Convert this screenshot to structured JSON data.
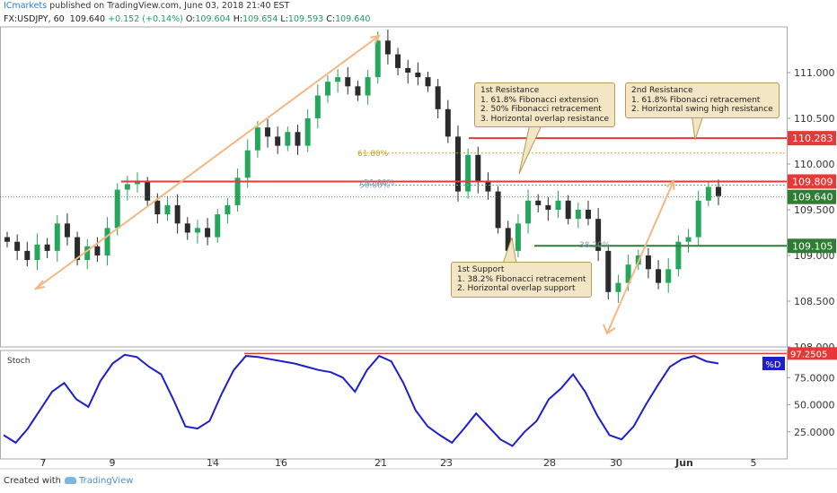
{
  "header": {
    "publisher": "ICmarkets",
    "published_text": "published on TradingView.com, June 03, 2018 21:40 EST",
    "symbol": "FX:USDJPY, 60",
    "last": "109.640",
    "change": "+0.152 (+0.14%)",
    "o_label": "O:",
    "o_value": "109.604",
    "h_label": "H:",
    "h_value": "109.654",
    "l_label": "L:",
    "l_value": "109.593",
    "c_label": "C:",
    "c_value": "109.640"
  },
  "footer": {
    "created_with": "Created with",
    "brand": "TradingView"
  },
  "annotations": {
    "resistance1": {
      "title": "1st Resistance",
      "lines": [
        "1. 61.8% Fibonacci extension",
        "2. 50% Fibonacci retracement",
        "3. Horizontal overlap resistance"
      ]
    },
    "resistance2": {
      "title": "2nd Resistance",
      "lines": [
        "1. 61.8% Fibonacci retracement",
        "2. Horizontal swing high resistance"
      ]
    },
    "support1": {
      "title": "1st Support",
      "lines": [
        "1. 38.2% Fibonacci retracement",
        "2. Horizontal overlap support"
      ]
    }
  },
  "chart_data": [
    {
      "type": "line",
      "style": "candlestick",
      "symbol": "USDJPY",
      "ylim": [
        108.0,
        111.5
      ],
      "y_ticks": [
        "111.000",
        "110.500",
        "110.000",
        "109.500",
        "109.000",
        "108.500",
        "108.000"
      ],
      "x_ticks": [
        "7",
        "9",
        "14",
        "16",
        "21",
        "23",
        "28",
        "30",
        "Jun",
        "5"
      ],
      "series": [
        {
          "values": [
            109.15,
            109.05,
            108.95,
            109.12,
            109.05,
            109.35,
            109.2,
            108.95,
            109.1,
            109.0,
            109.3,
            109.72,
            109.78,
            109.8,
            109.6,
            109.45,
            109.55,
            109.35,
            109.25,
            109.3,
            109.2,
            109.45,
            109.55,
            109.85,
            110.15,
            110.4,
            110.3,
            110.2,
            110.35,
            110.2,
            110.5,
            110.75,
            110.9,
            110.95,
            110.85,
            110.75,
            110.95,
            111.35,
            111.2,
            111.05,
            111.0,
            110.95,
            110.85,
            110.6,
            110.3,
            109.7,
            110.1,
            109.8,
            109.7,
            109.3,
            109.05,
            109.35,
            109.6,
            109.55,
            109.5,
            109.6,
            109.4,
            109.5,
            109.4,
            109.05,
            108.6,
            108.7,
            108.9,
            109.0,
            108.85,
            108.7,
            108.85,
            109.15,
            109.2,
            109.6,
            109.75,
            109.65
          ]
        }
      ],
      "levels": [
        {
          "label": "110.283",
          "value": 110.283,
          "color": "#e53935"
        },
        {
          "label": "109.809",
          "value": 109.809,
          "color": "#e53935"
        },
        {
          "label": "109.105",
          "value": 109.105,
          "color": "#2e7d32"
        }
      ],
      "current_price": {
        "label": "109.640",
        "value": 109.64,
        "color": "#2e7d32"
      },
      "fib_labels": [
        {
          "label": "61.80%",
          "value": 110.12
        },
        {
          "label": "50.00%",
          "value": 109.77
        },
        {
          "label": "50.00%",
          "value": 109.8
        },
        {
          "label": "38.20%",
          "value": 109.12
        }
      ]
    },
    {
      "type": "line",
      "title": "Stoch",
      "ylim": [
        0,
        100
      ],
      "y_ticks": [
        "75.0000",
        "50.0000",
        "25.0000"
      ],
      "marker_label": "97.2505",
      "marker_value": 97.25,
      "series": [
        {
          "name": "%D",
          "color": "#1f1fc8",
          "values": [
            22,
            15,
            28,
            45,
            62,
            70,
            55,
            48,
            72,
            88,
            96,
            94,
            85,
            78,
            55,
            30,
            28,
            35,
            60,
            82,
            95,
            94,
            92,
            90,
            88,
            85,
            82,
            80,
            75,
            62,
            82,
            95,
            90,
            70,
            45,
            30,
            22,
            15,
            28,
            42,
            30,
            18,
            12,
            25,
            35,
            55,
            65,
            78,
            62,
            40,
            22,
            18,
            30,
            50,
            68,
            85,
            92,
            95,
            90,
            88
          ]
        }
      ]
    }
  ]
}
